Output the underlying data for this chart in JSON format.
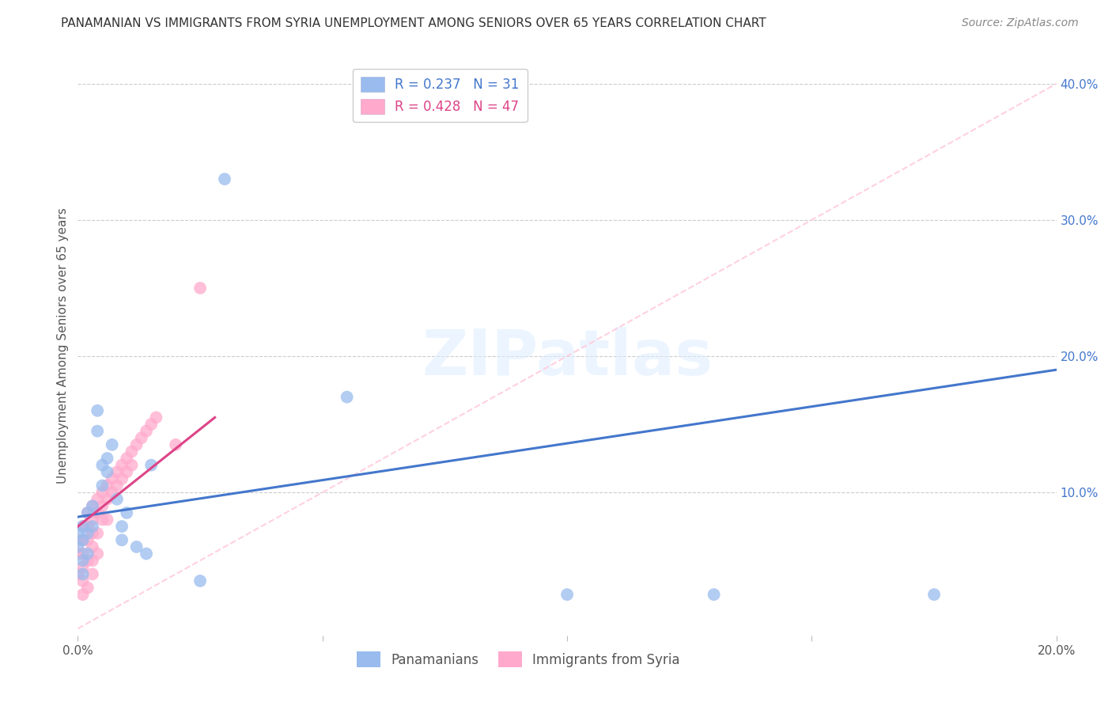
{
  "title": "PANAMANIAN VS IMMIGRANTS FROM SYRIA UNEMPLOYMENT AMONG SENIORS OVER 65 YEARS CORRELATION CHART",
  "source": "Source: ZipAtlas.com",
  "ylabel": "Unemployment Among Seniors over 65 years",
  "xlim": [
    0.0,
    0.2
  ],
  "ylim": [
    -0.005,
    0.42
  ],
  "watermark": "ZIPatlas",
  "legend1_r": "0.237",
  "legend1_n": "31",
  "legend2_r": "0.428",
  "legend2_n": "47",
  "legend1_label": "Panamanians",
  "legend2_label": "Immigrants from Syria",
  "blue_color": "#99BBEE",
  "pink_color": "#FFAACC",
  "blue_line_color": "#4477CC",
  "pink_line_color": "#DD4488",
  "ref_line_color": "#FFCCDD",
  "panamanian_x": [
    0.0,
    0.0,
    0.001,
    0.001,
    0.001,
    0.001,
    0.002,
    0.002,
    0.002,
    0.003,
    0.003,
    0.004,
    0.004,
    0.005,
    0.005,
    0.006,
    0.006,
    0.007,
    0.008,
    0.009,
    0.009,
    0.01,
    0.012,
    0.014,
    0.015,
    0.025,
    0.03,
    0.055,
    0.1,
    0.13,
    0.175
  ],
  "panamanian_y": [
    0.07,
    0.06,
    0.075,
    0.065,
    0.05,
    0.04,
    0.085,
    0.07,
    0.055,
    0.09,
    0.075,
    0.16,
    0.145,
    0.12,
    0.105,
    0.125,
    0.115,
    0.135,
    0.095,
    0.075,
    0.065,
    0.085,
    0.06,
    0.055,
    0.12,
    0.035,
    0.33,
    0.17,
    0.025,
    0.025,
    0.025
  ],
  "syria_x": [
    0.0,
    0.0,
    0.0,
    0.001,
    0.001,
    0.001,
    0.001,
    0.001,
    0.001,
    0.002,
    0.002,
    0.002,
    0.002,
    0.002,
    0.003,
    0.003,
    0.003,
    0.003,
    0.003,
    0.003,
    0.004,
    0.004,
    0.004,
    0.004,
    0.005,
    0.005,
    0.005,
    0.006,
    0.006,
    0.006,
    0.007,
    0.007,
    0.008,
    0.008,
    0.009,
    0.009,
    0.01,
    0.01,
    0.011,
    0.011,
    0.012,
    0.013,
    0.014,
    0.015,
    0.016,
    0.02,
    0.025
  ],
  "syria_y": [
    0.065,
    0.055,
    0.04,
    0.075,
    0.065,
    0.055,
    0.045,
    0.035,
    0.025,
    0.085,
    0.075,
    0.065,
    0.05,
    0.03,
    0.09,
    0.08,
    0.07,
    0.06,
    0.05,
    0.04,
    0.095,
    0.085,
    0.07,
    0.055,
    0.1,
    0.09,
    0.08,
    0.105,
    0.095,
    0.08,
    0.11,
    0.1,
    0.115,
    0.105,
    0.12,
    0.11,
    0.125,
    0.115,
    0.13,
    0.12,
    0.135,
    0.14,
    0.145,
    0.15,
    0.155,
    0.135,
    0.25
  ],
  "blue_trendline_x": [
    0.0,
    0.2
  ],
  "blue_trendline_y": [
    0.082,
    0.19
  ],
  "pink_trendline_x": [
    0.0,
    0.028
  ],
  "pink_trendline_y": [
    0.075,
    0.155
  ],
  "ref_line_x": [
    0.0,
    0.2
  ],
  "ref_line_y": [
    0.0,
    0.4
  ]
}
